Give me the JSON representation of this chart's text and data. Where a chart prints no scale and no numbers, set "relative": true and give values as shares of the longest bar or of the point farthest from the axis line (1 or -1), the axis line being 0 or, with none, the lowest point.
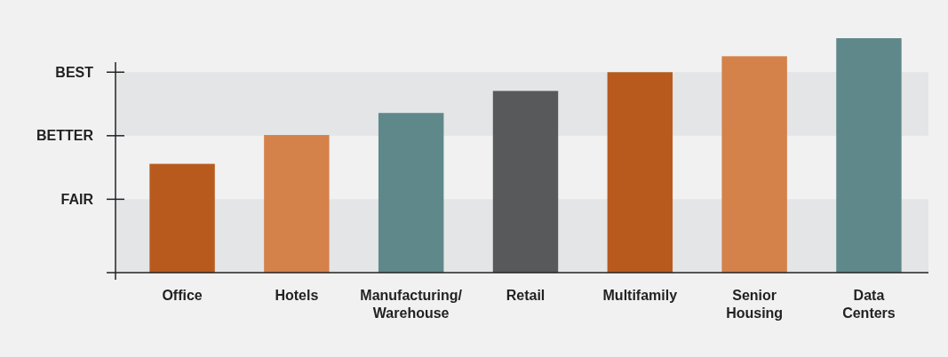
{
  "chart_data": {
    "type": "bar",
    "relative": true,
    "categories": [
      "Office",
      "Hotels",
      "Manufacturing/ Warehouse",
      "Retail",
      "Multifamily",
      "Senior Housing",
      "Data Centers"
    ],
    "values": [
      0.464,
      0.587,
      0.681,
      0.775,
      0.855,
      0.923,
      1
    ],
    "colors": [
      "#b85a1e",
      "#d4814a",
      "#5f888b",
      "#58595b",
      "#b85a1e",
      "#d4814a",
      "#5f888b"
    ],
    "ref_lines": [
      {
        "axis": "y",
        "value": 0.313,
        "label": "FAIR",
        "color": "#222222"
      },
      {
        "axis": "y",
        "value": 0.584,
        "label": "BETTER",
        "color": "#222222"
      },
      {
        "axis": "y",
        "value": 0.855,
        "label": "BEST",
        "color": "#222222"
      }
    ],
    "bands": [
      {
        "axis": "y",
        "from": 0,
        "to": 0.313,
        "color": "#e4e5e6"
      },
      {
        "axis": "y",
        "from": 0.584,
        "to": 0.855,
        "color": "#e4e5e6"
      }
    ]
  }
}
